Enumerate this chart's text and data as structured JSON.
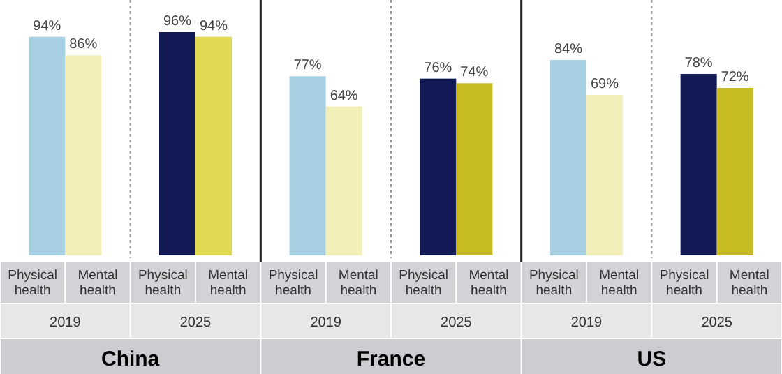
{
  "chart_data": [
    {
      "type": "bar",
      "title": "China",
      "categories": [
        "Physical health",
        "Mental health",
        "Physical health",
        "Mental health"
      ],
      "values": [
        94,
        86,
        96,
        94
      ],
      "colors": [
        "#a6cfe2",
        "#f2efb8",
        "#121a55",
        "#e1d852"
      ],
      "value_labels": [
        "94%",
        "86%",
        "96%",
        "94%"
      ],
      "annotations": [
        "2019",
        "2025"
      ]
    },
    {
      "type": "bar",
      "title": "France",
      "categories": [
        "Physical health",
        "Mental health",
        "Physical health",
        "Mental health"
      ],
      "values": [
        77,
        64,
        76,
        74
      ],
      "colors": [
        "#a6cfe2",
        "#f2efb8",
        "#121a55",
        "#c6bb22"
      ],
      "value_labels": [
        "77%",
        "64%",
        "76%",
        "74%"
      ],
      "annotations": [
        "2019",
        "2025"
      ]
    },
    {
      "type": "bar",
      "title": "US",
      "categories": [
        "Physical health",
        "Mental health",
        "Physical health",
        "Mental health"
      ],
      "values": [
        84,
        69,
        78,
        72
      ],
      "colors": [
        "#a6cfe2",
        "#f2efb8",
        "#121a55",
        "#c6bb22"
      ],
      "value_labels": [
        "84%",
        "69%",
        "78%",
        "72%"
      ],
      "annotations": [
        "2019",
        "2025"
      ]
    }
  ]
}
